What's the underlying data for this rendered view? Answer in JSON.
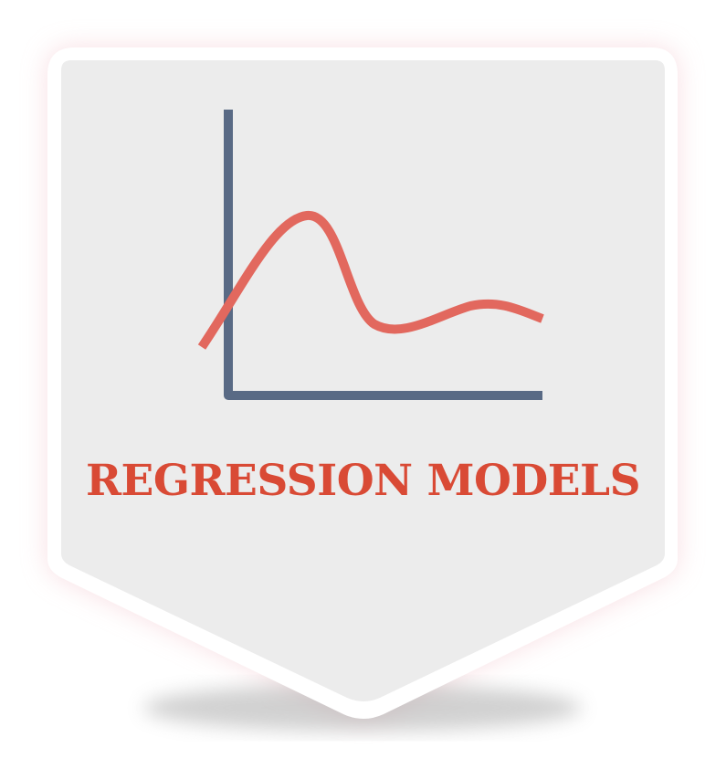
{
  "badge": {
    "title": "REGRESSION MODELS",
    "icon": "regression-curve-chart-icon",
    "colors": {
      "title": "#d94a35",
      "badge_fill": "#ececec",
      "badge_border": "#ffffff",
      "glow": "#f4c4cc",
      "axes": "#596a85",
      "curve": "#e2685e"
    }
  }
}
